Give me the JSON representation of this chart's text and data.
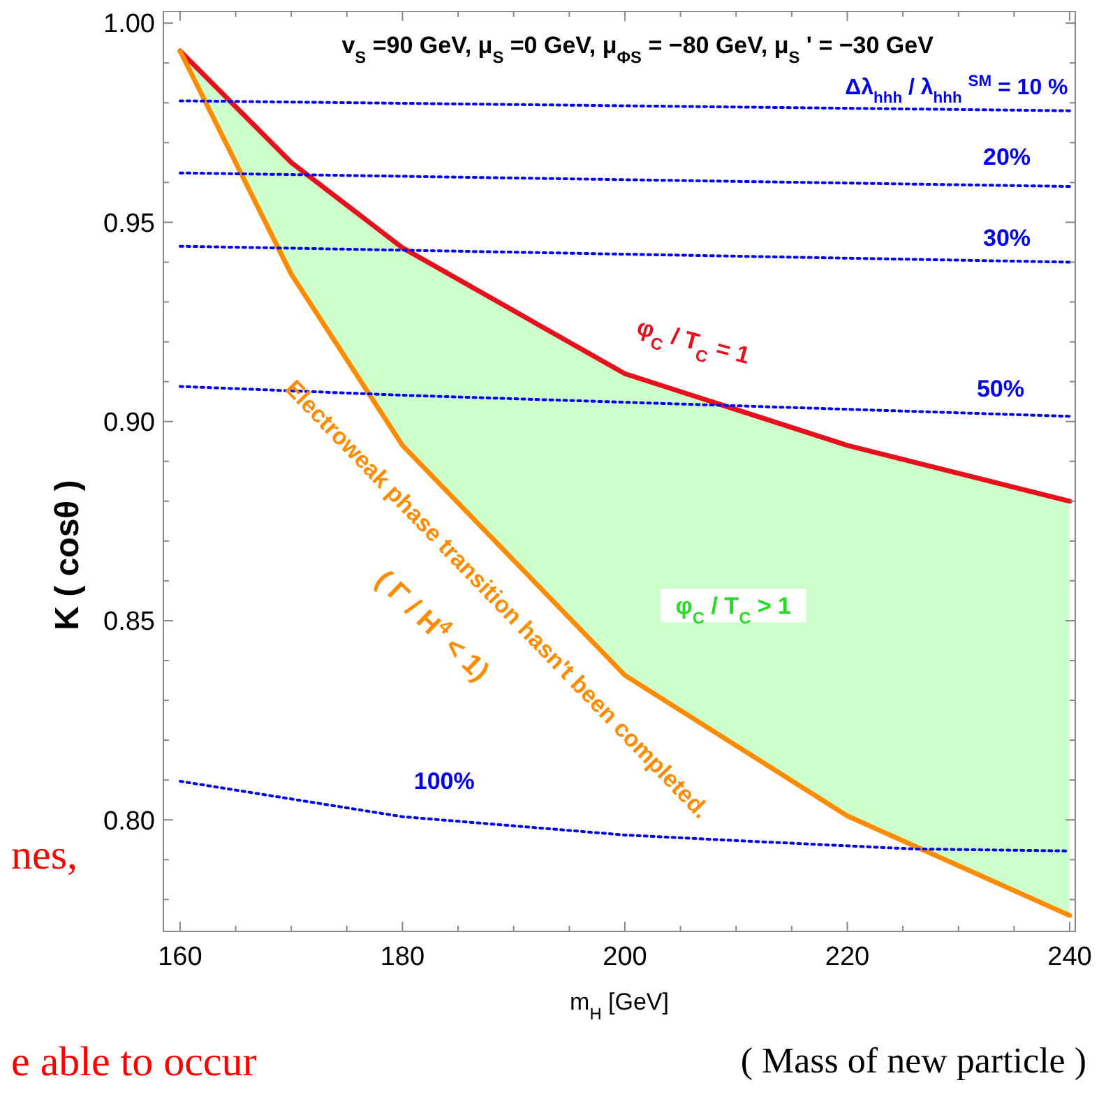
{
  "chart_data": {
    "type": "line",
    "title": "v$_{S}$=90 GeV, μ$_{S}$=0 GeV, μ$_{ΦS}$ = −80 GeV,  μ$_{S}$ ' = −30 GeV",
    "xlabel": "m$_{H}$[GeV]",
    "ylabel": "K  ( cosθ )",
    "xlim": [
      158.5,
      240.5
    ],
    "ylim": [
      0.772,
      1.003
    ],
    "xticks": [
      160,
      {
        "value": 165,
        "label": null
      },
      {
        "value": 170,
        "label": null
      },
      {
        "value": 175,
        "label": null
      },
      180,
      {
        "value": 185,
        "label": null
      },
      {
        "value": 190,
        "label": null
      },
      {
        "value": 195,
        "label": null
      },
      200,
      {
        "value": 205,
        "label": null
      },
      {
        "value": 210,
        "label": null
      },
      {
        "value": 215,
        "label": null
      },
      220,
      {
        "value": 225,
        "label": null
      },
      {
        "value": 230,
        "label": null
      },
      {
        "value": 235,
        "label": null
      },
      240
    ],
    "yticks": [
      {
        "value": 0.78,
        "label": null
      },
      {
        "value": 0.79,
        "label": null
      },
      {
        "value": 0.8,
        "label": "0.80"
      },
      {
        "value": 0.81,
        "label": null
      },
      {
        "value": 0.82,
        "label": null
      },
      {
        "value": 0.83,
        "label": null
      },
      {
        "value": 0.84,
        "label": null
      },
      {
        "value": 0.85,
        "label": "0.85"
      },
      {
        "value": 0.86,
        "label": null
      },
      {
        "value": 0.87,
        "label": null
      },
      {
        "value": 0.88,
        "label": null
      },
      {
        "value": 0.89,
        "label": null
      },
      {
        "value": 0.9,
        "label": "0.90"
      },
      {
        "value": 0.91,
        "label": null
      },
      {
        "value": 0.92,
        "label": null
      },
      {
        "value": 0.93,
        "label": null
      },
      {
        "value": 0.94,
        "label": null
      },
      {
        "value": 0.95,
        "label": "0.95"
      },
      {
        "value": 0.96,
        "label": null
      },
      {
        "value": 0.97,
        "label": null
      },
      {
        "value": 0.98,
        "label": null
      },
      {
        "value": 0.99,
        "label": null
      },
      {
        "value": 1.0,
        "label": "1.00"
      }
    ],
    "grid": false,
    "legend": false,
    "marker": "none",
    "series": [
      {
        "name": "φ$_{C}$ / T$_{C}$ = 1",
        "color": "#e8101c",
        "x": [
          160,
          170,
          180,
          200,
          220,
          240
        ],
        "values": [
          0.993,
          0.965,
          0.9436,
          0.912,
          0.894,
          0.88
        ],
        "lower": [
          0.993,
          0.937,
          0.894,
          0.8363,
          0.801,
          0.776
        ],
        "upper": [
          0.993,
          0.965,
          0.9436,
          0.912,
          0.894,
          0.88
        ]
      },
      {
        "name": "Electroweak phase transition hasn't been completed.",
        "color": "#ff8c00",
        "x": [
          160,
          170,
          180,
          200,
          220,
          240
        ],
        "values": [
          0.993,
          0.937,
          0.894,
          0.8363,
          0.801,
          0.776
        ]
      },
      {
        "name": "Δλ$_{hhh}$ / λ$_{hhh}$$^{SM}$ = 10 %",
        "color": "#0000ee",
        "line_style": "dotted",
        "x": [
          160,
          240
        ],
        "values": [
          0.9805,
          0.978
        ]
      },
      {
        "name": "20%",
        "color": "#0000ee",
        "line_style": "dotted",
        "x": [
          160,
          240
        ],
        "values": [
          0.9624,
          0.959
        ]
      },
      {
        "name": "30%",
        "color": "#0000ee",
        "line_style": "dotted",
        "x": [
          160,
          240
        ],
        "values": [
          0.944,
          0.94
        ]
      },
      {
        "name": "50%",
        "color": "#0000ee",
        "line_style": "dotted",
        "x": [
          160,
          180,
          240
        ],
        "values": [
          0.9088,
          0.9066,
          0.9013
        ]
      },
      {
        "name": "100%",
        "color": "#0000ee",
        "line_style": "dotted",
        "x": [
          160,
          180,
          200,
          210,
          226,
          240
        ],
        "values": [
          0.8097,
          0.8008,
          0.7962,
          0.7948,
          0.7927,
          0.7922
        ]
      }
    ],
    "annotations": [
      "φ$_{C}$ / T$_{C}$ > 1",
      "( Γ / H$^{4}$ < 1)",
      "( Mass of new particle )",
      "nes,",
      "e able to occur"
    ]
  }
}
